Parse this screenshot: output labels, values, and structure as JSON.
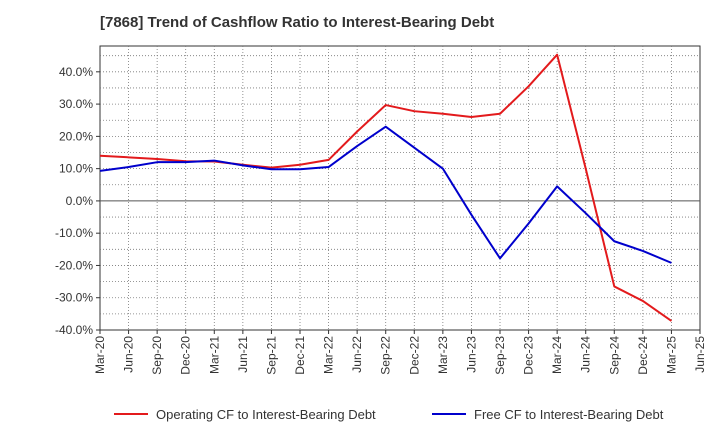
{
  "chart_data": {
    "type": "line",
    "title": "[7868]  Trend of Cashflow Ratio to Interest-Bearing Debt",
    "xlabel": "",
    "ylabel": "",
    "x": [
      "Mar-20",
      "Jun-20",
      "Sep-20",
      "Dec-20",
      "Mar-21",
      "Jun-21",
      "Sep-21",
      "Dec-21",
      "Mar-22",
      "Jun-22",
      "Sep-22",
      "Dec-22",
      "Mar-23",
      "Jun-23",
      "Sep-23",
      "Dec-23",
      "Mar-24",
      "Jun-24",
      "Sep-24",
      "Dec-24",
      "Mar-25",
      "Jun-25"
    ],
    "yticks": [
      "40.0%",
      "30.0%",
      "20.0%",
      "10.0%",
      "0.0%",
      "-10.0%",
      "-20.0%",
      "-30.0%",
      "-40.0%"
    ],
    "ylim": [
      -40,
      48
    ],
    "grid": true,
    "legend_position": "bottom",
    "series": [
      {
        "name": "Operating CF to Interest-Bearing Debt",
        "color": "#e31a1c",
        "values": [
          14.0,
          13.5,
          13.0,
          12.3,
          12.2,
          11.2,
          10.3,
          11.2,
          12.7,
          21.5,
          29.7,
          27.8,
          27.0,
          26.0,
          27.0,
          35.5,
          45.3,
          10.0,
          -26.5,
          -31.0,
          -37.2,
          null
        ]
      },
      {
        "name": "Free CF to Interest-Bearing Debt",
        "color": "#0000cc",
        "values": [
          9.3,
          10.5,
          12.0,
          12.0,
          12.5,
          11.0,
          9.8,
          9.8,
          10.5,
          17.0,
          23.0,
          16.5,
          10.0,
          -4.3,
          -17.8,
          -7.0,
          4.5,
          -3.8,
          -12.5,
          -15.5,
          -19.2,
          null
        ]
      }
    ]
  }
}
